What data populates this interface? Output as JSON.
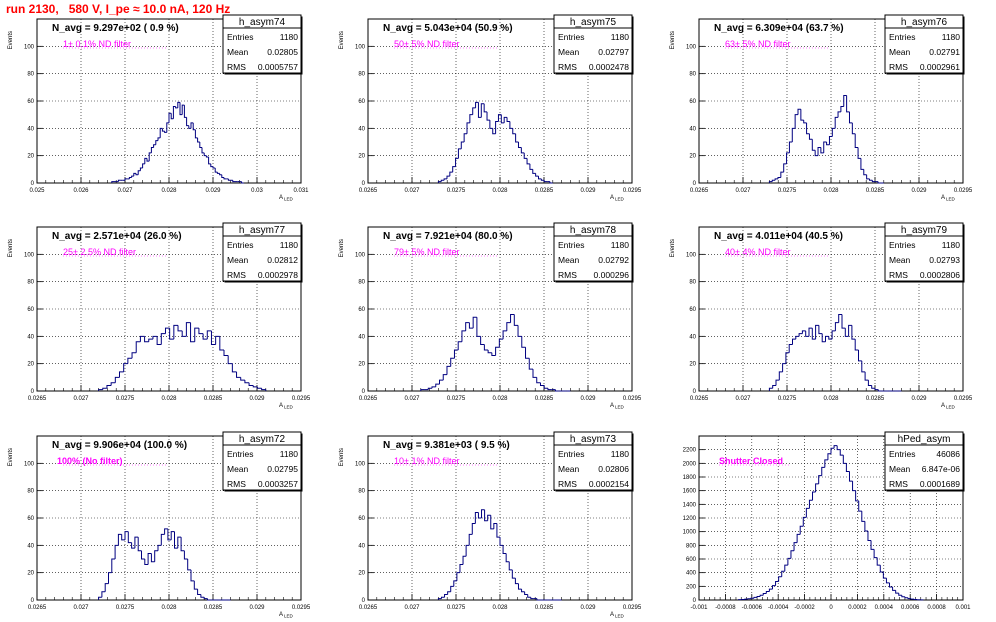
{
  "title": "run 2130,   580 V, I_pe ≈ 10.0 nA, 120 Hz",
  "stats_labels": [
    "Entries",
    "Mean",
    "RMS"
  ],
  "chart_data": [
    {
      "type": "bar",
      "name": "h_asym74",
      "navg": "N_avg = 9.297e+02 ( 0.9 %)",
      "note": "1± 0.1% ND filter",
      "ylabel": "Events",
      "xlabel": "A_LED",
      "xlim": [
        0.025,
        0.031
      ],
      "ylim": [
        0,
        120
      ],
      "xticks": [
        "0.025",
        "0.026",
        "0.027",
        "0.028",
        "0.029",
        "0.03",
        "0.031"
      ],
      "xtick_values": [
        0.025,
        0.026,
        0.027,
        0.028,
        0.029,
        0.03,
        0.031
      ],
      "yticks": [
        0,
        20,
        40,
        60,
        80,
        100
      ],
      "stats": [
        "1180",
        "0.02805",
        "0.0005757"
      ],
      "hist": {
        "xmin": 0.0267,
        "xmax": 0.0297,
        "values": [
          1,
          1,
          1,
          2,
          2,
          2,
          3,
          3,
          4,
          5,
          7,
          6,
          9,
          11,
          14,
          18,
          16,
          22,
          26,
          28,
          31,
          33,
          40,
          38,
          37,
          44,
          51,
          47,
          56,
          55,
          59,
          50,
          57,
          48,
          42,
          40,
          44,
          39,
          33,
          30,
          26,
          22,
          20,
          19,
          14,
          12,
          11,
          8,
          7,
          6,
          4,
          3,
          3,
          2,
          2,
          1,
          1,
          1,
          1,
          0
        ]
      }
    },
    {
      "type": "bar",
      "name": "h_asym75",
      "navg": "N_avg = 5.043e+04 (50.9 %)",
      "note": "50± 5% ND filter",
      "ylabel": "Events",
      "xlabel": "A_LED",
      "xlim": [
        0.0265,
        0.0295
      ],
      "ylim": [
        0,
        120
      ],
      "xticks": [
        "0.0265",
        "0.027",
        "0.0275",
        "0.028",
        "0.0285",
        "0.029",
        "0.0295"
      ],
      "xtick_values": [
        0.0265,
        0.027,
        0.0275,
        0.028,
        0.0285,
        0.029,
        0.0295
      ],
      "yticks": [
        0,
        20,
        40,
        60,
        80,
        100
      ],
      "stats": [
        "1180",
        "0.02797",
        "0.0002478"
      ],
      "hist": {
        "xmin": 0.0273,
        "xmax": 0.0286,
        "values": [
          1,
          2,
          3,
          5,
          8,
          12,
          18,
          25,
          30,
          36,
          44,
          50,
          55,
          59,
          48,
          58,
          52,
          46,
          40,
          36,
          45,
          50,
          44,
          48,
          45,
          40,
          36,
          30,
          26,
          22,
          18,
          14,
          10,
          7,
          5,
          3,
          2,
          1,
          1,
          0
        ]
      }
    },
    {
      "type": "bar",
      "name": "h_asym76",
      "navg": "N_avg = 6.309e+04 (63.7 %)",
      "note": "63± 5% ND filter",
      "ylabel": "Events",
      "xlabel": "A_LED",
      "xlim": [
        0.0265,
        0.0295
      ],
      "ylim": [
        0,
        120
      ],
      "xticks": [
        "0.0265",
        "0.027",
        "0.0275",
        "0.028",
        "0.0285",
        "0.029",
        "0.0295"
      ],
      "xtick_values": [
        0.0265,
        0.027,
        0.0275,
        0.028,
        0.0285,
        0.029,
        0.0295
      ],
      "yticks": [
        0,
        20,
        40,
        60,
        80,
        100
      ],
      "stats": [
        "1180",
        "0.02791",
        "0.0002961"
      ],
      "hist": {
        "xmin": 0.0273,
        "xmax": 0.0286,
        "values": [
          1,
          2,
          3,
          4,
          8,
          14,
          22,
          30,
          40,
          50,
          54,
          46,
          44,
          36,
          32,
          24,
          20,
          26,
          22,
          30,
          28,
          34,
          40,
          48,
          52,
          56,
          64,
          52,
          44,
          36,
          26,
          18,
          10,
          6,
          3,
          2,
          1,
          1,
          0,
          0
        ]
      }
    },
    {
      "type": "bar",
      "name": "h_asym77",
      "navg": "N_avg = 2.571e+04 (26.0 %)",
      "note": "25± 2.5% ND filter",
      "ylabel": "Events",
      "xlabel": "A_LED",
      "xlim": [
        0.0265,
        0.0295
      ],
      "ylim": [
        0,
        120
      ],
      "xticks": [
        "0.0265",
        "0.027",
        "0.0275",
        "0.028",
        "0.0285",
        "0.029",
        "0.0295"
      ],
      "xtick_values": [
        0.0265,
        0.027,
        0.0275,
        0.028,
        0.0285,
        0.029,
        0.0295
      ],
      "yticks": [
        0,
        20,
        40,
        60,
        80,
        100
      ],
      "stats": [
        "1180",
        "0.02812",
        "0.0002978"
      ],
      "hist": {
        "xmin": 0.0272,
        "xmax": 0.0291,
        "values": [
          1,
          2,
          4,
          6,
          10,
          14,
          20,
          24,
          28,
          36,
          40,
          36,
          38,
          40,
          34,
          42,
          46,
          38,
          48,
          44,
          40,
          50,
          36,
          46,
          42,
          38,
          44,
          34,
          40,
          30,
          26,
          20,
          14,
          10,
          8,
          6,
          4,
          3,
          2,
          1
        ]
      }
    },
    {
      "type": "bar",
      "name": "h_asym78",
      "navg": "N_avg = 7.921e+04 (80.0 %)",
      "note": "79± 5% ND filter",
      "ylabel": "Events",
      "xlabel": "A_LED",
      "xlim": [
        0.0265,
        0.0295
      ],
      "ylim": [
        0,
        120
      ],
      "xticks": [
        "0.0265",
        "0.027",
        "0.0275",
        "0.028",
        "0.0285",
        "0.029",
        "0.0295"
      ],
      "xtick_values": [
        0.0265,
        0.027,
        0.0275,
        0.028,
        0.0285,
        0.029,
        0.0295
      ],
      "yticks": [
        0,
        20,
        40,
        60,
        80,
        100
      ],
      "stats": [
        "1180",
        "0.02792",
        "0.000296"
      ],
      "hist": {
        "xmin": 0.0271,
        "xmax": 0.0288,
        "values": [
          1,
          1,
          2,
          3,
          5,
          8,
          12,
          18,
          24,
          30,
          36,
          44,
          50,
          46,
          54,
          40,
          34,
          30,
          28,
          26,
          32,
          38,
          44,
          50,
          56,
          48,
          40,
          32,
          24,
          16,
          10,
          6,
          4,
          2,
          1,
          1,
          0,
          0,
          0,
          0
        ]
      }
    },
    {
      "type": "bar",
      "name": "h_asym79",
      "navg": "N_avg = 4.011e+04 (40.5 %)",
      "note": "40± 4% ND filter",
      "ylabel": "Events",
      "xlabel": "A_LED",
      "xlim": [
        0.0265,
        0.0295
      ],
      "ylim": [
        0,
        120
      ],
      "xticks": [
        "0.0265",
        "0.027",
        "0.0275",
        "0.028",
        "0.0285",
        "0.029",
        "0.0295"
      ],
      "xtick_values": [
        0.0265,
        0.027,
        0.0275,
        0.028,
        0.0285,
        0.029,
        0.0295
      ],
      "yticks": [
        0,
        20,
        40,
        60,
        80,
        100
      ],
      "stats": [
        "1180",
        "0.02793",
        "0.0002806"
      ],
      "hist": {
        "xmin": 0.0273,
        "xmax": 0.0288,
        "values": [
          2,
          4,
          8,
          14,
          20,
          28,
          34,
          38,
          40,
          42,
          44,
          40,
          46,
          38,
          48,
          42,
          36,
          40,
          38,
          44,
          50,
          56,
          46,
          40,
          48,
          38,
          30,
          22,
          14,
          8,
          4,
          2,
          1,
          0,
          0,
          0,
          0,
          0,
          0,
          0
        ]
      }
    },
    {
      "type": "bar",
      "name": "h_asym72",
      "navg": "N_avg = 9.906e+04 (100.0 %)",
      "note": "100% (No filter)",
      "ylabel": "Events",
      "xlabel": "A_LED",
      "xlim": [
        0.0265,
        0.0295
      ],
      "ylim": [
        0,
        120
      ],
      "xticks": [
        "0.0265",
        "0.027",
        "0.0275",
        "0.028",
        "0.0285",
        "0.029",
        "0.0295"
      ],
      "xtick_values": [
        0.0265,
        0.027,
        0.0275,
        0.028,
        0.0285,
        0.029,
        0.0295
      ],
      "yticks": [
        0,
        20,
        40,
        60,
        80,
        100
      ],
      "stats": [
        "1180",
        "0.02795",
        "0.0003257"
      ],
      "hist": {
        "xmin": 0.0272,
        "xmax": 0.0287,
        "values": [
          2,
          6,
          12,
          20,
          30,
          40,
          48,
          44,
          50,
          42,
          38,
          46,
          36,
          30,
          26,
          34,
          28,
          36,
          40,
          48,
          52,
          44,
          50,
          38,
          46,
          36,
          30,
          22,
          14,
          8,
          4,
          2,
          1,
          0,
          0,
          0,
          0,
          0,
          0,
          0
        ]
      }
    },
    {
      "type": "bar",
      "name": "h_asym73",
      "navg": "N_avg = 9.381e+03 ( 9.5 %)",
      "note": "10± 1% ND filter",
      "ylabel": "Events",
      "xlabel": "A_LED",
      "xlim": [
        0.0265,
        0.0295
      ],
      "ylim": [
        0,
        120
      ],
      "xticks": [
        "0.0265",
        "0.027",
        "0.0275",
        "0.028",
        "0.0285",
        "0.029",
        "0.0295"
      ],
      "xtick_values": [
        0.0265,
        0.027,
        0.0275,
        0.028,
        0.0285,
        0.029,
        0.0295
      ],
      "yticks": [
        0,
        20,
        40,
        60,
        80,
        100
      ],
      "stats": [
        "1180",
        "0.02806",
        "0.0002154"
      ],
      "hist": {
        "xmin": 0.0273,
        "xmax": 0.0287,
        "values": [
          1,
          2,
          4,
          6,
          10,
          14,
          20,
          26,
          32,
          40,
          48,
          56,
          64,
          60,
          66,
          58,
          62,
          52,
          56,
          46,
          40,
          34,
          28,
          22,
          16,
          12,
          8,
          6,
          4,
          2,
          1,
          1,
          0,
          0,
          0,
          0,
          0,
          0,
          0,
          0
        ]
      }
    },
    {
      "type": "bar",
      "name": "hPed_asym",
      "navg": "",
      "note": "Shutter Closed",
      "ylabel": "",
      "xlabel": "",
      "xlim": [
        -0.001,
        0.001
      ],
      "ylim": [
        0,
        2400
      ],
      "xticks": [
        "-0.001",
        "-0.0008",
        "-0.0006",
        "-0.0004",
        "-0.0002",
        "0",
        "0.0002",
        "0.0004",
        "0.0006",
        "0.0008",
        "0.001"
      ],
      "xtick_values": [
        -0.001,
        -0.0008,
        -0.0006,
        -0.0004,
        -0.0002,
        0,
        0.0002,
        0.0004,
        0.0006,
        0.0008,
        0.001
      ],
      "yticks": [
        0,
        200,
        400,
        600,
        800,
        1000,
        1200,
        1400,
        1600,
        1800,
        2000,
        2200
      ],
      "stats": [
        "46086",
        "6.847e-06",
        "0.0001689"
      ],
      "hist": {
        "xmin": -0.0007,
        "xmax": 0.0007,
        "values": [
          5,
          8,
          12,
          18,
          26,
          38,
          52,
          70,
          95,
          125,
          160,
          210,
          270,
          340,
          420,
          510,
          610,
          720,
          840,
          960,
          1080,
          1210,
          1340,
          1460,
          1580,
          1700,
          1820,
          1940,
          2050,
          2140,
          2220,
          2260,
          2200,
          2120,
          2000,
          1880,
          1740,
          1600,
          1450,
          1300,
          1150,
          1010,
          870,
          740,
          620,
          510,
          410,
          320,
          250,
          190,
          140,
          100,
          70,
          48,
          32,
          20,
          12,
          7,
          4,
          2
        ]
      }
    }
  ]
}
